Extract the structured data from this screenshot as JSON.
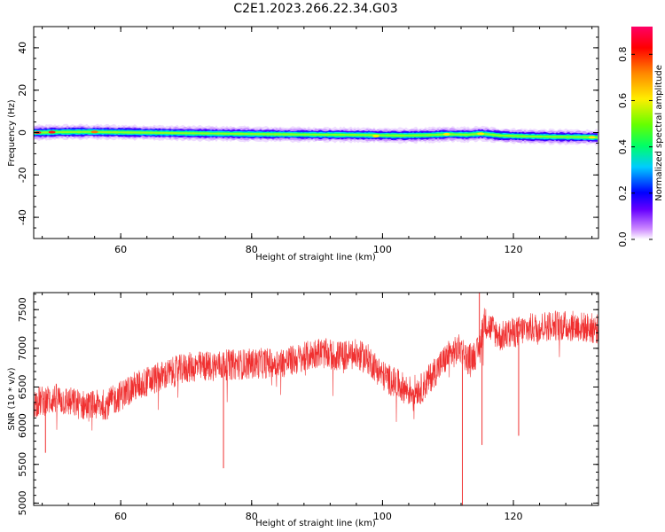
{
  "figure_title": "C2E1.2023.266.22.34.G03",
  "chart_data": [
    {
      "type": "heatmap",
      "xlabel": "Height of straight line (km)",
      "ylabel": "Frequency (Hz)",
      "xlim": [
        46.7,
        133.0
      ],
      "ylim": [
        -50,
        50
      ],
      "x_ticks": [
        60,
        80,
        100,
        120
      ],
      "x_tick_labels": [
        "60",
        "80",
        "100",
        "120"
      ],
      "y_ticks": [
        -40,
        -20,
        0,
        20,
        40
      ],
      "y_tick_labels": [
        "-40",
        "-20",
        "0",
        "20",
        "40"
      ],
      "colorbar": {
        "label": "Normalized spectral amplitude",
        "range": [
          0,
          0.92
        ],
        "ticks": [
          0.0,
          0.2,
          0.4,
          0.6,
          0.8
        ],
        "tick_labels": [
          "0.0",
          "0.2",
          "0.4",
          "0.6",
          "0.8"
        ]
      },
      "center_line": {
        "x": [
          46.7,
          48,
          50,
          55,
          60,
          70,
          80,
          90,
          95,
          98,
          100,
          103,
          107,
          110,
          113,
          115,
          118,
          122,
          126,
          130,
          133
        ],
        "y": [
          0,
          0,
          0.2,
          0.3,
          0.1,
          -0.3,
          -0.7,
          -1.0,
          -1.1,
          -1.2,
          -1.3,
          -1.4,
          -1.2,
          -0.8,
          -1.0,
          -0.5,
          -1.4,
          -1.8,
          -2.0,
          -2.1,
          -2.3
        ]
      },
      "hot_spots": [
        {
          "x": 47.3,
          "y": 0.0,
          "amplitude": 0.85
        },
        {
          "x": 49.5,
          "y": 0.2,
          "amplitude": 0.82
        },
        {
          "x": 56.0,
          "y": 0.3,
          "amplitude": 0.75
        },
        {
          "x": 99.0,
          "y": -1.6,
          "amplitude": 0.6
        },
        {
          "x": 109.8,
          "y": -0.8,
          "amplitude": 0.62
        },
        {
          "x": 115.0,
          "y": -0.6,
          "amplitude": 0.6
        },
        {
          "x": 132.0,
          "y": -2.2,
          "amplitude": 0.55
        }
      ],
      "grid": false
    },
    {
      "type": "line",
      "xlabel": "Height of straight line (km)",
      "ylabel": "SNR (10 * v/v)",
      "xlim": [
        46.7,
        133.0
      ],
      "ylim": [
        4970,
        7720
      ],
      "x_ticks": [
        60,
        80,
        100,
        120
      ],
      "x_tick_labels": [
        "60",
        "80",
        "100",
        "120"
      ],
      "y_ticks": [
        5000,
        5500,
        6000,
        6500,
        7000,
        7500
      ],
      "y_tick_labels": [
        "5000",
        "5500",
        "6000",
        "6500",
        "7000",
        "7500"
      ],
      "color": "#f03030",
      "trend": {
        "x": [
          46.7,
          50,
          55,
          58,
          62,
          65,
          70,
          75,
          80,
          85,
          88,
          90,
          93,
          96,
          98,
          100,
          102,
          104,
          106,
          108,
          110,
          112,
          113,
          114.6,
          115.5,
          118,
          122,
          126,
          130,
          133
        ],
        "y": [
          6300,
          6350,
          6250,
          6280,
          6500,
          6600,
          6750,
          6780,
          6800,
          6820,
          6880,
          6950,
          6900,
          6920,
          6850,
          6650,
          6550,
          6450,
          6480,
          6700,
          6900,
          7000,
          6850,
          6950,
          7350,
          7150,
          7250,
          7300,
          7280,
          7250
        ]
      },
      "noise_amplitude": 200,
      "spikes": [
        {
          "x": 75.7,
          "y": 5450
        },
        {
          "x": 112.2,
          "y": 4970
        },
        {
          "x": 114.8,
          "y": 7720
        },
        {
          "x": 115.2,
          "y": 5750
        },
        {
          "x": 48.5,
          "y": 5650
        },
        {
          "x": 120.8,
          "y": 5870
        }
      ],
      "grid": false
    }
  ]
}
